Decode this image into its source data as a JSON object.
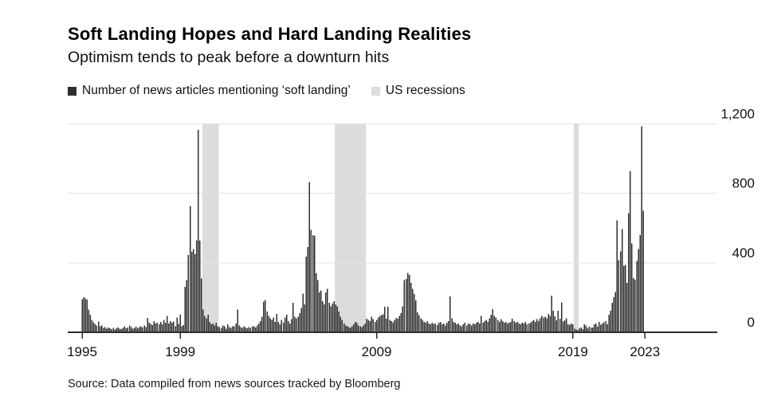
{
  "header": {
    "title": "Soft Landing Hopes and Hard Landing Realities",
    "subtitle": "Optimism tends to peak before a downturn hits"
  },
  "legend": {
    "series_label": "Number of news articles mentioning ‘soft landing’",
    "recession_label": "US recessions"
  },
  "source": "Source: Data compiled from news sources tracked by Bloomberg",
  "colors": {
    "bar": "#2d2d2d",
    "recession_band": "#dcdcdc",
    "gridline": "#e3e3e3",
    "axis": "#2d2d2d",
    "label_text": "#111111"
  },
  "chart_data": {
    "type": "bar",
    "title": "Number of news articles mentioning 'soft landing', monthly",
    "frequency": "monthly",
    "start": "1995-01",
    "end": "2023-08",
    "ylim": [
      0,
      1200
    ],
    "grid": "horizontal",
    "legend_position": "top-left",
    "y_axis_side": "right",
    "y_ticks": [
      {
        "value": 0,
        "label": "0"
      },
      {
        "value": 400,
        "label": "400"
      },
      {
        "value": 800,
        "label": "800"
      },
      {
        "value": 1200,
        "label": "1,200"
      }
    ],
    "x_ticks": [
      {
        "month_index": 0,
        "label": "1995"
      },
      {
        "month_index": 60,
        "label": "1999"
      },
      {
        "month_index": 180,
        "label": "2009"
      },
      {
        "month_index": 300,
        "label": "2019"
      },
      {
        "month_index": 344,
        "label": "2023"
      }
    ],
    "recessions": [
      {
        "start_month_index": 74,
        "end_month_index": 83
      },
      {
        "start_month_index": 155,
        "end_month_index": 173
      },
      {
        "start_month_index": 301,
        "end_month_index": 303
      }
    ],
    "values": [
      190,
      202,
      195,
      188,
      130,
      100,
      72,
      58,
      48,
      40,
      62,
      35,
      40,
      25,
      30,
      20,
      28,
      22,
      18,
      25,
      15,
      22,
      28,
      20,
      18,
      25,
      35,
      22,
      28,
      40,
      30,
      20,
      25,
      32,
      24,
      30,
      35,
      28,
      40,
      30,
      82,
      55,
      48,
      42,
      65,
      50,
      55,
      45,
      60,
      45,
      70,
      55,
      93,
      50,
      65,
      55,
      63,
      35,
      86,
      48,
      101,
      35,
      41,
      262,
      300,
      445,
      728,
      464,
      480,
      450,
      529,
      1165,
      527,
      310,
      130,
      95,
      80,
      100,
      60,
      45,
      50,
      40,
      55,
      35,
      30,
      25,
      40,
      35,
      20,
      45,
      30,
      25,
      35,
      35,
      50,
      130,
      40,
      30,
      25,
      35,
      28,
      22,
      30,
      25,
      35,
      35,
      28,
      40,
      50,
      65,
      90,
      177,
      185,
      120,
      95,
      80,
      70,
      85,
      60,
      105,
      60,
      45,
      70,
      55,
      85,
      100,
      65,
      50,
      75,
      170,
      90,
      80,
      90,
      110,
      140,
      223,
      160,
      437,
      491,
      866,
      590,
      560,
      555,
      340,
      300,
      230,
      240,
      180,
      160,
      230,
      250,
      170,
      150,
      165,
      178,
      160,
      150,
      120,
      90,
      70,
      50,
      40,
      35,
      30,
      25,
      35,
      45,
      60,
      55,
      40,
      35,
      30,
      40,
      50,
      78,
      72,
      65,
      90,
      75,
      60,
      70,
      85,
      93,
      98,
      103,
      147,
      78,
      147,
      72,
      65,
      58,
      72,
      82,
      77,
      95,
      110,
      150,
      300,
      307,
      341,
      330,
      284,
      250,
      220,
      183,
      115,
      98,
      80,
      70,
      60,
      55,
      65,
      50,
      45,
      55,
      48,
      50,
      42,
      55,
      60,
      45,
      50,
      40,
      55,
      65,
      207,
      80,
      60,
      55,
      45,
      50,
      40,
      35,
      45,
      55,
      40,
      50,
      45,
      40,
      50,
      45,
      55,
      60,
      50,
      93,
      55,
      65,
      70,
      60,
      80,
      100,
      132,
      95,
      85,
      70,
      60,
      75,
      65,
      55,
      60,
      50,
      55,
      60,
      78,
      65,
      55,
      60,
      50,
      45,
      55,
      50,
      60,
      45,
      50,
      55,
      65,
      70,
      60,
      75,
      65,
      80,
      95,
      85,
      90,
      80,
      105,
      95,
      211,
      124,
      92,
      69,
      124,
      77,
      173,
      61,
      69,
      80,
      46,
      43,
      50,
      45,
      20,
      15,
      12,
      23,
      28,
      18,
      46,
      38,
      23,
      33,
      28,
      28,
      45,
      50,
      33,
      60,
      43,
      50,
      58,
      65,
      46,
      101,
      124,
      170,
      203,
      231,
      644,
      415,
      465,
      594,
      384,
      388,
      285,
      686,
      927,
      511,
      312,
      302,
      410,
      480,
      560,
      1187,
      700
    ]
  }
}
